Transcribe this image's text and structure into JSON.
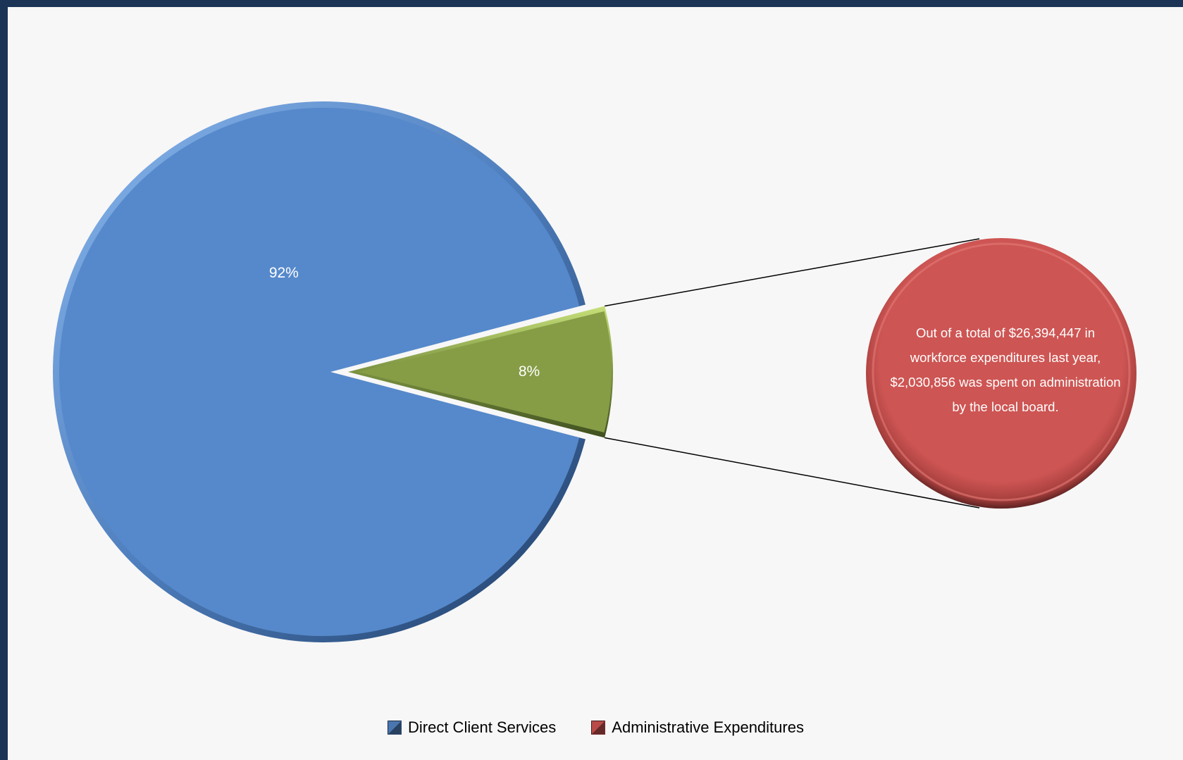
{
  "chart_data": {
    "type": "pie",
    "title": "",
    "slices": [
      {
        "name": "Direct Client Services",
        "value": 92,
        "label": "92%",
        "color": "#5689cb"
      },
      {
        "name": "Administrative Expenditures",
        "value": 8,
        "label": "8%",
        "color": "#869d46"
      }
    ],
    "legend": {
      "position": "bottom",
      "items": [
        {
          "label": "Direct Client Services",
          "color": "#4a76b0"
        },
        {
          "label": "Administrative Expenditures",
          "color": "#b84a48"
        }
      ]
    },
    "callout": {
      "text": "Out of a total of $26,394,447 in workforce expenditures last year, $2,030,856 was spent on administration by the local board.",
      "color": "#cd5553"
    }
  }
}
